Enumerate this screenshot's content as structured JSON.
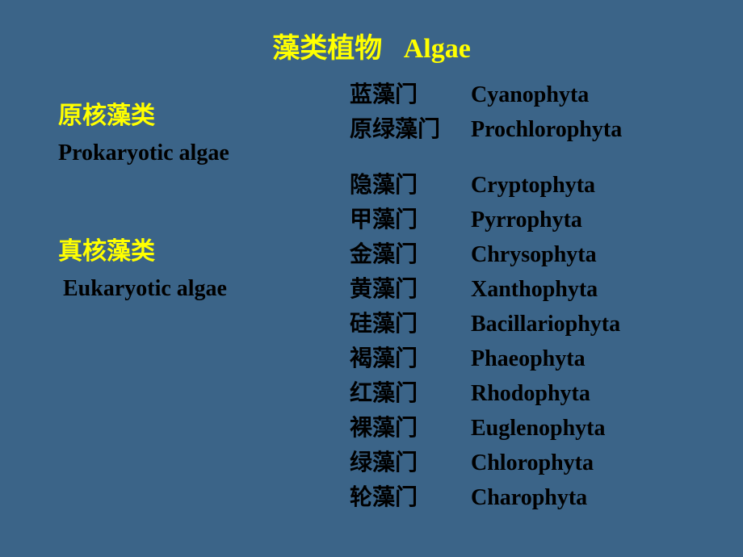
{
  "background_color": "#3b6488",
  "accent_color": "#ffff00",
  "text_color": "#000000",
  "title": {
    "cn": "藻类植物",
    "en": "Algae"
  },
  "groups": [
    {
      "heading_cn": "原核藻类",
      "heading_en": "Prokaryotic algae",
      "items": [
        {
          "cn": "蓝藻门",
          "en": "Cyanophyta"
        },
        {
          "cn": "原绿藻门",
          "en": "Prochlorophyta"
        }
      ]
    },
    {
      "heading_cn": "真核藻类",
      "heading_en": "Eukaryotic algae",
      "items": [
        {
          "cn": "隐藻门",
          "en": "Cryptophyta"
        },
        {
          "cn": "甲藻门",
          "en": "Pyrrophyta"
        },
        {
          "cn": "金藻门",
          "en": "Chrysophyta"
        },
        {
          "cn": "黄藻门",
          "en": "Xanthophyta"
        },
        {
          "cn": "硅藻门",
          "en": "Bacillariophyta"
        },
        {
          "cn": "褐藻门",
          "en": "Phaeophyta"
        },
        {
          "cn": "红藻门",
          "en": "Rhodophyta"
        },
        {
          "cn": "裸藻门",
          "en": "Euglenophyta"
        },
        {
          "cn": "绿藻门",
          "en": "Chlorophyta"
        },
        {
          "cn": "轮藻门",
          "en": "Charophyta"
        }
      ]
    }
  ]
}
